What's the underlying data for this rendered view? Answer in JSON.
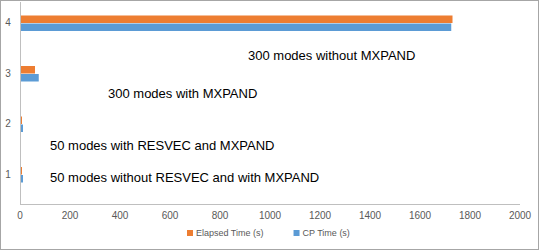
{
  "chart_data": {
    "type": "bar",
    "orientation": "horizontal",
    "categories": [
      "1",
      "2",
      "3",
      "4"
    ],
    "series": [
      {
        "name": "Elapsed Time (s)",
        "color": "#ed7d31",
        "values": [
          8,
          8,
          60,
          1730
        ]
      },
      {
        "name": "CP Time (s)",
        "color": "#5b9bd5",
        "values": [
          12,
          12,
          75,
          1725
        ]
      }
    ],
    "annotations": [
      "50 modes without RESVEC and with MXPAND",
      "50 modes with RESVEC and MXPAND",
      "300 modes with MXPAND",
      "300 modes without MXPAND"
    ],
    "xlim": [
      0,
      2000
    ],
    "xticks": [
      0,
      200,
      400,
      600,
      800,
      1000,
      1200,
      1400,
      1600,
      1800,
      2000
    ],
    "grid": false,
    "legend": "bottom"
  }
}
